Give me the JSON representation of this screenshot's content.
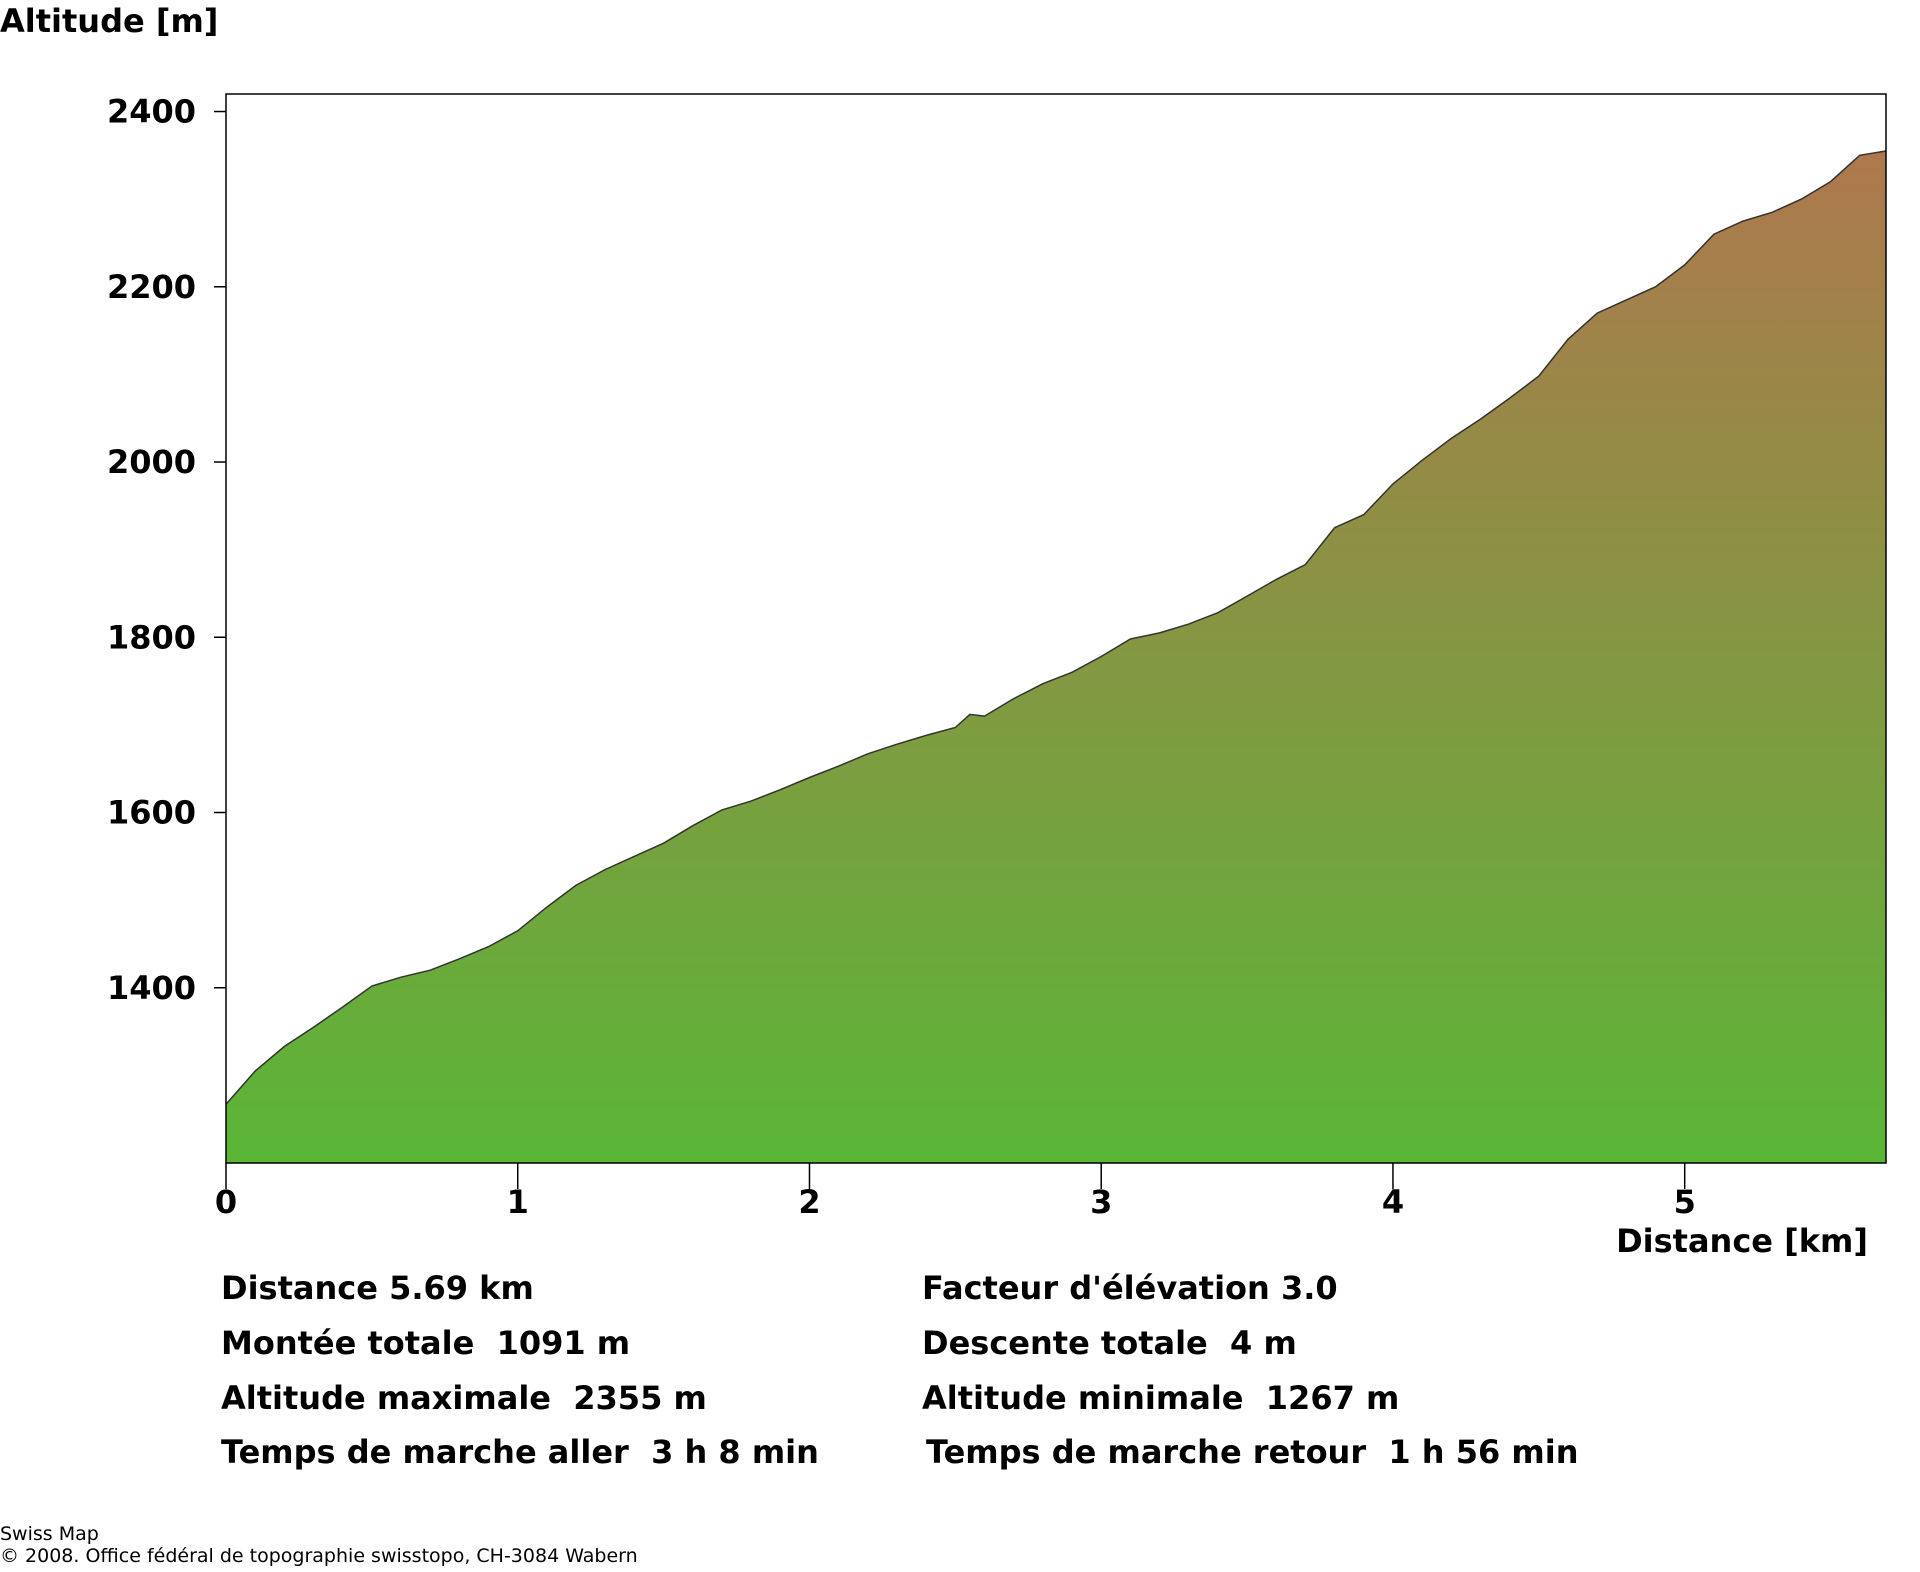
{
  "chart_data": {
    "type": "area",
    "ylabel": "Altitude [m]",
    "xlabel": "Distance [km]",
    "xlim": [
      0,
      5.69
    ],
    "ylim": [
      1200,
      2420
    ],
    "x_ticks": [
      0,
      1,
      2,
      3,
      4,
      5
    ],
    "y_ticks": [
      1400,
      1600,
      1800,
      2000,
      2200,
      2400
    ],
    "grid": false,
    "legend": "none",
    "fill_gradient": {
      "bottom": "#5ab637",
      "top": "#ae784d"
    },
    "x": [
      0,
      0.1,
      0.2,
      0.3,
      0.4,
      0.5,
      0.6,
      0.7,
      0.8,
      0.9,
      1.0,
      1.1,
      1.2,
      1.3,
      1.4,
      1.5,
      1.6,
      1.7,
      1.8,
      1.9,
      2.0,
      2.1,
      2.2,
      2.3,
      2.4,
      2.5,
      2.55,
      2.6,
      2.7,
      2.8,
      2.9,
      3.0,
      3.1,
      3.2,
      3.3,
      3.4,
      3.5,
      3.6,
      3.7,
      3.8,
      3.9,
      4.0,
      4.1,
      4.2,
      4.3,
      4.4,
      4.5,
      4.6,
      4.7,
      4.8,
      4.9,
      5.0,
      5.1,
      5.2,
      5.3,
      5.4,
      5.5,
      5.6,
      5.69
    ],
    "y": [
      1267,
      1305,
      1333,
      1355,
      1378,
      1402,
      1412,
      1420,
      1433,
      1447,
      1465,
      1492,
      1517,
      1535,
      1550,
      1565,
      1585,
      1603,
      1613,
      1626,
      1640,
      1653,
      1667,
      1678,
      1688,
      1697,
      1712,
      1710,
      1730,
      1747,
      1760,
      1778,
      1798,
      1805,
      1815,
      1828,
      1847,
      1866,
      1883,
      1925,
      1940,
      1975,
      2002,
      2027,
      2049,
      2073,
      2098,
      2140,
      2170,
      2185,
      2200,
      2225,
      2260,
      2275,
      2285,
      2300,
      2320,
      2350,
      2355
    ]
  },
  "stats": {
    "distance": "Distance 5.69 km",
    "facteur": "Facteur d'élévation 3.0",
    "montee": "Montée totale  1091 m",
    "descente": "Descente totale  4 m",
    "alt_max": "Altitude maximale  2355 m",
    "alt_min": "Altitude minimale  1267 m",
    "temps_aller": "Temps de marche aller  3 h 8 min",
    "temps_retour": "Temps de marche retour  1 h 56 min"
  },
  "credits": {
    "line1": "Swiss Map",
    "line2": "© 2008. Office fédéral de topographie swisstopo, CH-3084 Wabern"
  }
}
